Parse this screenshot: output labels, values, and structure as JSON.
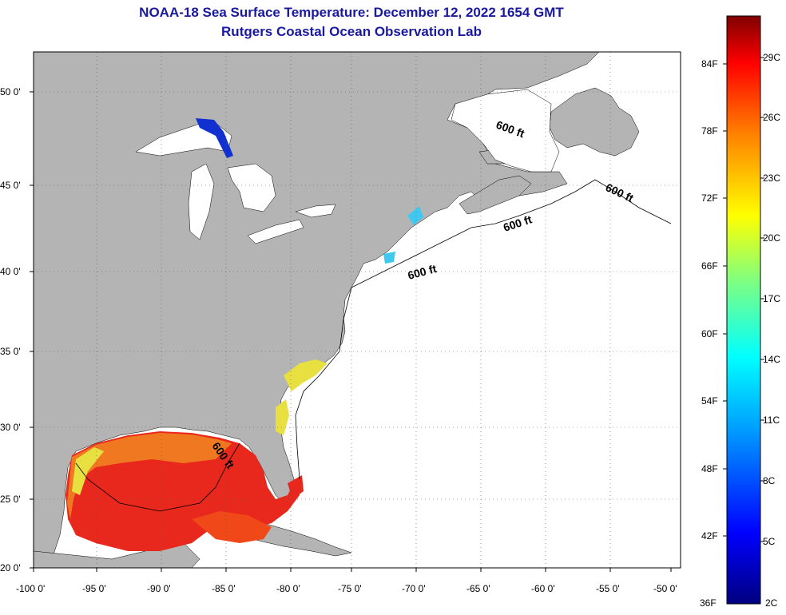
{
  "title": {
    "line1": "NOAA-18 Sea Surface Temperature:  December 12, 2022 1654 GMT",
    "line2": "Rutgers Coastal Ocean Observation Lab"
  },
  "map": {
    "lon_ticks": [
      "-100 0'",
      "-95 0'",
      "-90 0'",
      "-85 0'",
      "-80 0'",
      "-75 0'",
      "-70 0'",
      "-65 0'",
      "-60 0'",
      "-55 0'",
      "-50 0'"
    ],
    "lat_ticks": [
      "50 0'",
      "45 0'",
      "40 0'",
      "35 0'",
      "30 0'",
      "25 0'",
      "20 0'"
    ],
    "contour_label": "600 ft",
    "colors": {
      "land": "#b4b4b4",
      "water": "#ffffff",
      "warm": "#e8281c",
      "hot": "#f04818",
      "orange": "#f07820",
      "yellow": "#e8e040",
      "cold": "#1030d0",
      "cyan": "#40c8f0"
    }
  },
  "colorbar": {
    "fahrenheit": [
      "84F",
      "78F",
      "72F",
      "66F",
      "60F",
      "54F",
      "48F",
      "42F",
      "36F"
    ],
    "celsius": [
      "29C",
      "26C",
      "23C",
      "20C",
      "17C",
      "14C",
      "11C",
      "8C",
      "5C",
      "2C"
    ]
  }
}
